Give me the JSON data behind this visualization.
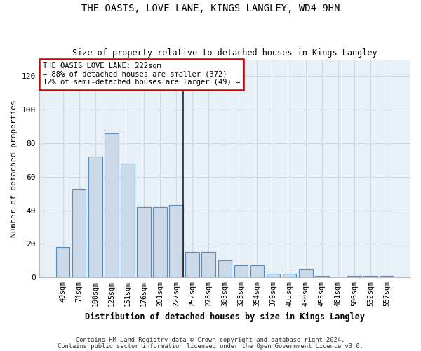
{
  "title": "THE OASIS, LOVE LANE, KINGS LANGLEY, WD4 9HN",
  "subtitle": "Size of property relative to detached houses in Kings Langley",
  "xlabel": "Distribution of detached houses by size in Kings Langley",
  "ylabel": "Number of detached properties",
  "bar_color": "#ccd9e8",
  "bar_edge_color": "#5b8db8",
  "categories": [
    "49sqm",
    "74sqm",
    "100sqm",
    "125sqm",
    "151sqm",
    "176sqm",
    "201sqm",
    "227sqm",
    "252sqm",
    "278sqm",
    "303sqm",
    "328sqm",
    "354sqm",
    "379sqm",
    "405sqm",
    "430sqm",
    "455sqm",
    "481sqm",
    "506sqm",
    "532sqm",
    "557sqm"
  ],
  "values": [
    18,
    53,
    72,
    86,
    68,
    42,
    42,
    43,
    15,
    15,
    10,
    7,
    7,
    2,
    2,
    5,
    1,
    0,
    1,
    1,
    1
  ],
  "ylim": [
    0,
    130
  ],
  "yticks": [
    0,
    20,
    40,
    60,
    80,
    100,
    120
  ],
  "property_label": "THE OASIS LOVE LANE: 222sqm",
  "annotation_line1": "← 88% of detached houses are smaller (372)",
  "annotation_line2": "12% of semi-detached houses are larger (49) →",
  "vline_position": 7.42,
  "bg_color": "#e8f0f8",
  "grid_color": "#d0d8e4",
  "footer1": "Contains HM Land Registry data © Crown copyright and database right 2024.",
  "footer2": "Contains public sector information licensed under the Open Government Licence v3.0."
}
